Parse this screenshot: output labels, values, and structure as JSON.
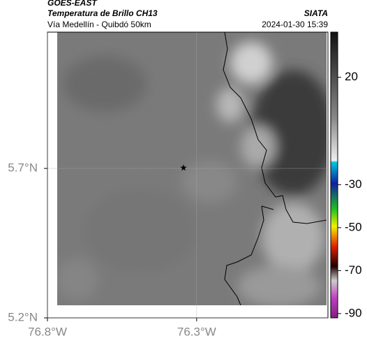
{
  "header": {
    "source": "GOES-EAST",
    "title": "Temperatura de Brillo CH13",
    "subtitle": "Vía Medellín - Quibdó 50km",
    "agency": "SIATA",
    "datetime": "2024-01-30 15:39"
  },
  "map": {
    "xlim": [
      -76.8,
      -75.86
    ],
    "ylim": [
      5.2,
      6.156
    ],
    "xticks": [
      {
        "value": -76.8,
        "label": "76.8°W"
      },
      {
        "value": -76.3,
        "label": "76.3°W"
      }
    ],
    "yticks": [
      {
        "value": 5.7,
        "label": "5.7°N"
      },
      {
        "value": 5.2,
        "label": "5.2°N"
      }
    ],
    "marker": {
      "lon": -76.344,
      "lat": 5.702
    }
  },
  "colorbar": {
    "lim": [
      41,
      -92
    ],
    "ticks": [
      20,
      -30,
      -50,
      -70,
      -90
    ]
  }
}
